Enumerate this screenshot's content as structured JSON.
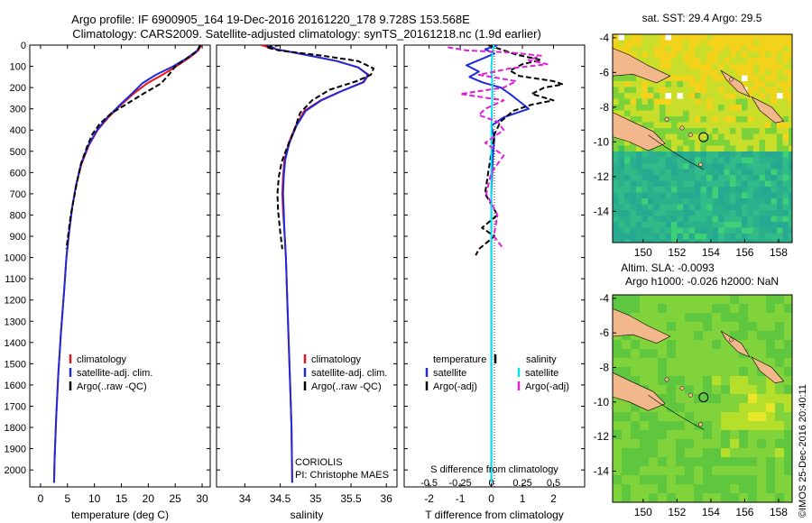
{
  "header": {
    "line1": "Argo profile: IF 6900905_164 19-Dec-2016 20161220_178 9.728S 153.568E",
    "line2": "Climatology: CARS2009. Satellite-adjusted climatology: synTS_20161218.nc (1.9d earlier)"
  },
  "colors": {
    "red": "#e8141b",
    "blue": "#1f2bd9",
    "black": "#000000",
    "cyan": "#00e5ee",
    "magenta": "#e020d8"
  },
  "chart_data": [
    {
      "type": "line",
      "xlabel": "temperature (deg C)",
      "ylabel": "",
      "xlim": [
        -2,
        31.5
      ],
      "ylim": [
        2080,
        0
      ],
      "xticks": [
        0,
        5,
        10,
        15,
        20,
        25,
        30
      ],
      "yticks": [
        0,
        100,
        200,
        300,
        400,
        500,
        600,
        700,
        800,
        900,
        1000,
        1100,
        1200,
        1300,
        1400,
        1500,
        1600,
        1700,
        1800,
        1900,
        2000
      ],
      "legend": [
        "climatology",
        "satellite-adj. clim.",
        "Argo(..raw -QC)"
      ],
      "series": [
        {
          "name": "climatology",
          "color": "red",
          "dash": "",
          "points": [
            [
              29.8,
              0
            ],
            [
              29.3,
              25
            ],
            [
              27.6,
              60
            ],
            [
              25.2,
              100
            ],
            [
              22.6,
              140
            ],
            [
              19.8,
              180
            ],
            [
              17.2,
              230
            ],
            [
              15.0,
              280
            ],
            [
              12.6,
              340
            ],
            [
              10.6,
              400
            ],
            [
              9.0,
              470
            ],
            [
              7.6,
              560
            ],
            [
              6.6,
              660
            ],
            [
              5.9,
              760
            ],
            [
              5.3,
              880
            ],
            [
              4.8,
              1000
            ],
            [
              4.4,
              1150
            ],
            [
              3.8,
              1350
            ],
            [
              3.3,
              1550
            ],
            [
              2.9,
              1750
            ],
            [
              2.6,
              1950
            ],
            [
              2.5,
              2060
            ]
          ]
        },
        {
          "name": "satellite-adj. clim.",
          "color": "blue",
          "dash": "",
          "points": [
            [
              29.6,
              0
            ],
            [
              29.1,
              25
            ],
            [
              27.3,
              60
            ],
            [
              24.6,
              100
            ],
            [
              21.4,
              140
            ],
            [
              18.9,
              180
            ],
            [
              16.9,
              230
            ],
            [
              14.8,
              280
            ],
            [
              12.4,
              340
            ],
            [
              10.5,
              400
            ],
            [
              8.9,
              470
            ],
            [
              7.5,
              560
            ],
            [
              6.6,
              660
            ],
            [
              5.9,
              760
            ],
            [
              5.3,
              880
            ],
            [
              4.8,
              1000
            ],
            [
              4.4,
              1150
            ],
            [
              3.8,
              1350
            ],
            [
              3.3,
              1550
            ],
            [
              2.9,
              1750
            ],
            [
              2.6,
              1950
            ],
            [
              2.5,
              2060
            ]
          ]
        },
        {
          "name": "Argo(..raw -QC)",
          "color": "black",
          "dash": "6,3",
          "points": [
            [
              29.7,
              0
            ],
            [
              29.0,
              30
            ],
            [
              27.0,
              65
            ],
            [
              25.0,
              100
            ],
            [
              23.8,
              140
            ],
            [
              22.4,
              180
            ],
            [
              19.0,
              230
            ],
            [
              15.5,
              285
            ],
            [
              13.2,
              320
            ],
            [
              11.0,
              370
            ],
            [
              9.6,
              420
            ],
            [
              8.6,
              480
            ],
            [
              7.5,
              560
            ],
            [
              6.8,
              640
            ],
            [
              6.2,
              720
            ],
            [
              5.6,
              800
            ],
            [
              5.2,
              880
            ],
            [
              4.8,
              960
            ]
          ]
        }
      ]
    },
    {
      "type": "line",
      "xlabel": "salinity",
      "ylabel": "",
      "xlim": [
        33.6,
        36.15
      ],
      "ylim": [
        2080,
        0
      ],
      "xticks": [
        34,
        34.5,
        35,
        35.5,
        36
      ],
      "legend": [
        "climatology",
        "satellite-adj. clim.",
        "Argo(..raw -QC)"
      ],
      "annotation": [
        "CORIOLIS",
        "PI: Christophe MAES"
      ],
      "series": [
        {
          "name": "climatology",
          "color": "red",
          "dash": "",
          "points": [
            [
              34.23,
              0
            ],
            [
              34.45,
              20
            ],
            [
              34.85,
              45
            ],
            [
              35.3,
              75
            ],
            [
              35.6,
              105
            ],
            [
              35.75,
              140
            ],
            [
              35.68,
              175
            ],
            [
              35.38,
              215
            ],
            [
              35.07,
              260
            ],
            [
              34.84,
              310
            ],
            [
              34.72,
              380
            ],
            [
              34.62,
              460
            ],
            [
              34.56,
              540
            ],
            [
              34.54,
              620
            ],
            [
              34.53,
              700
            ],
            [
              34.54,
              780
            ],
            [
              34.56,
              880
            ],
            [
              34.58,
              1000
            ],
            [
              34.6,
              1200
            ],
            [
              34.62,
              1400
            ],
            [
              34.64,
              1600
            ],
            [
              34.66,
              1800
            ],
            [
              34.67,
              2060
            ]
          ]
        },
        {
          "name": "satellite-adj. clim.",
          "color": "blue",
          "dash": "",
          "points": [
            [
              34.32,
              0
            ],
            [
              34.45,
              20
            ],
            [
              34.85,
              45
            ],
            [
              35.3,
              75
            ],
            [
              35.6,
              105
            ],
            [
              35.74,
              140
            ],
            [
              35.67,
              175
            ],
            [
              35.38,
              215
            ],
            [
              35.08,
              260
            ],
            [
              34.86,
              310
            ],
            [
              34.73,
              380
            ],
            [
              34.63,
              460
            ],
            [
              34.57,
              540
            ],
            [
              34.55,
              620
            ],
            [
              34.54,
              700
            ],
            [
              34.55,
              780
            ],
            [
              34.56,
              880
            ],
            [
              34.58,
              1000
            ],
            [
              34.6,
              1200
            ],
            [
              34.62,
              1400
            ],
            [
              34.64,
              1600
            ],
            [
              34.66,
              1800
            ],
            [
              34.67,
              2060
            ]
          ]
        },
        {
          "name": "Argo(..raw -QC)",
          "color": "black",
          "dash": "6,3",
          "points": [
            [
              34.5,
              0
            ],
            [
              34.3,
              10
            ],
            [
              34.48,
              25
            ],
            [
              35.1,
              50
            ],
            [
              35.6,
              75
            ],
            [
              35.82,
              110
            ],
            [
              35.78,
              140
            ],
            [
              35.58,
              170
            ],
            [
              35.2,
              210
            ],
            [
              34.95,
              260
            ],
            [
              34.78,
              320
            ],
            [
              34.7,
              400
            ],
            [
              34.6,
              480
            ],
            [
              34.52,
              550
            ],
            [
              34.48,
              620
            ],
            [
              34.46,
              700
            ],
            [
              34.47,
              780
            ],
            [
              34.5,
              880
            ],
            [
              34.53,
              960
            ]
          ]
        }
      ]
    },
    {
      "type": "line",
      "xlabel": "T difference from climatology",
      "x2label": "S difference from climatology",
      "xlim": [
        -2.8,
        3.0
      ],
      "x2lim": [
        -0.7,
        0.75
      ],
      "ylim": [
        2080,
        0
      ],
      "xticks": [
        -2,
        -1,
        0,
        1,
        2
      ],
      "x2ticks": [
        -0.5,
        -0.25,
        0,
        0.25,
        0.5
      ],
      "x2ticklabels": [
        "-0.5",
        "-0.25",
        "0",
        "0.25",
        "0.5"
      ],
      "legend": [
        "temperature",
        "satellite",
        "Argo(-adj)",
        "salinity",
        "satellite",
        "Argo(-adj)"
      ],
      "series": [
        {
          "name": "satellite",
          "group": "temperature",
          "axis": "T",
          "color": "blue",
          "dash": "",
          "points": [
            [
              0.2,
              0
            ],
            [
              -0.2,
              20
            ],
            [
              0.1,
              40
            ],
            [
              -0.3,
              65
            ],
            [
              -0.8,
              95
            ],
            [
              -0.4,
              125
            ],
            [
              -0.7,
              150
            ],
            [
              -0.3,
              175
            ],
            [
              0.3,
              200
            ],
            [
              0.6,
              230
            ],
            [
              0.9,
              265
            ],
            [
              1.2,
              300
            ],
            [
              0.4,
              340
            ],
            [
              0.0,
              380
            ],
            [
              0.1,
              440
            ],
            [
              0.05,
              520
            ],
            [
              0.0,
              700
            ],
            [
              0.0,
              2060
            ]
          ]
        },
        {
          "name": "Argo(-adj)",
          "group": "temperature",
          "axis": "T",
          "color": "black",
          "dash": "6,3",
          "points": [
            [
              -0.1,
              0
            ],
            [
              0.3,
              20
            ],
            [
              0.8,
              45
            ],
            [
              1.6,
              70
            ],
            [
              1.0,
              90
            ],
            [
              0.6,
              120
            ],
            [
              0.9,
              145
            ],
            [
              2.0,
              170
            ],
            [
              2.3,
              185
            ],
            [
              1.7,
              200
            ],
            [
              1.3,
              230
            ],
            [
              2.0,
              260
            ],
            [
              1.3,
              280
            ],
            [
              0.7,
              310
            ],
            [
              0.3,
              360
            ],
            [
              0.1,
              420
            ],
            [
              -0.1,
              600
            ],
            [
              -0.2,
              700
            ],
            [
              0.2,
              800
            ],
            [
              -0.3,
              860
            ],
            [
              0.1,
              900
            ],
            [
              -0.4,
              960
            ],
            [
              -0.5,
              990
            ]
          ]
        },
        {
          "name": "satellite",
          "group": "salinity",
          "axis": "S",
          "color": "cyan",
          "dash": "",
          "points": [
            [
              0.02,
              0
            ],
            [
              0.01,
              30
            ],
            [
              0.0,
              100
            ],
            [
              0.01,
              200
            ],
            [
              0.005,
              300
            ],
            [
              0.0,
              400
            ],
            [
              0.0,
              2060
            ]
          ]
        },
        {
          "name": "Argo(-adj)",
          "group": "salinity",
          "axis": "S",
          "color": "magenta",
          "dash": "6,3",
          "points": [
            [
              -0.35,
              10
            ],
            [
              -0.2,
              25
            ],
            [
              0.15,
              35
            ],
            [
              0.4,
              50
            ],
            [
              0.3,
              70
            ],
            [
              0.45,
              90
            ],
            [
              0.15,
              110
            ],
            [
              -0.1,
              140
            ],
            [
              0.2,
              170
            ],
            [
              0.1,
              200
            ],
            [
              -0.25,
              230
            ],
            [
              0.1,
              260
            ],
            [
              -0.05,
              300
            ],
            [
              -0.1,
              330
            ],
            [
              0.05,
              360
            ],
            [
              0.1,
              400
            ],
            [
              -0.05,
              460
            ],
            [
              0.1,
              520
            ],
            [
              0.0,
              600
            ],
            [
              -0.04,
              700
            ],
            [
              0.05,
              800
            ],
            [
              0.02,
              900
            ],
            [
              0.1,
              960
            ]
          ]
        }
      ]
    },
    {
      "type": "heatmap",
      "title": "sat. SST: 29.4  Argo: 29.5",
      "xlim": [
        148.2,
        158.8
      ],
      "ylim": [
        -15.8,
        -3.8
      ],
      "xticks": [
        150,
        152,
        154,
        156,
        158
      ],
      "yticks": [
        -4,
        -6,
        -8,
        -10,
        -12,
        -14
      ],
      "profile_marker": [
        153.568,
        -9.728
      ]
    },
    {
      "type": "heatmap",
      "title": "Altim. SLA: -0.0093",
      "subtitle": "Argo h1000: -0.026 h2000: NaN",
      "xlim": [
        148.2,
        158.8
      ],
      "ylim": [
        -15.8,
        -3.8
      ],
      "xticks": [
        150,
        152,
        154,
        156,
        158
      ],
      "yticks": [
        -4,
        -6,
        -8,
        -10,
        -12,
        -14
      ],
      "profile_marker": [
        153.568,
        -9.728
      ]
    }
  ],
  "footer": {
    "credit": "©IMOS 25-Dec-2016 20:40:11"
  }
}
